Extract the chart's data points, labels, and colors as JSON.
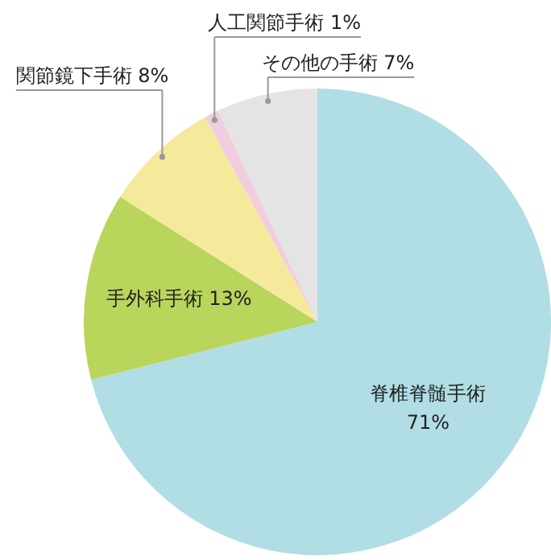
{
  "chart_data": {
    "type": "pie",
    "categories": [
      "脊椎脊髄手術",
      "手外科手術",
      "関節鏡下手術",
      "人工関節手術",
      "その他の手術"
    ],
    "values": [
      71,
      13,
      8,
      1,
      7
    ],
    "value_labels": [
      "71%",
      "13%",
      "8%",
      "1%",
      "7%"
    ],
    "colors": [
      "#b1dde5",
      "#b9d55b",
      "#f5ea9b",
      "#f1cde0",
      "#e4e4e4"
    ],
    "legend": false
  }
}
